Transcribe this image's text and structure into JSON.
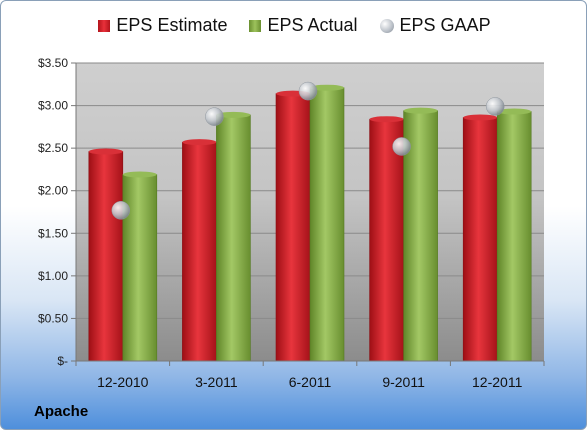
{
  "legend": {
    "estimate": "EPS Estimate",
    "actual": "EPS Actual",
    "gaap": "EPS GAAP"
  },
  "company": "Apache",
  "colors": {
    "estimate": "#d42a2f",
    "actual": "#8ab04c",
    "gaap": "#b9bfc6"
  },
  "chart_data": {
    "type": "bar",
    "categories": [
      "12-2010",
      "3-2011",
      "6-2011",
      "9-2011",
      "12-2011"
    ],
    "series": [
      {
        "name": "EPS Estimate",
        "values": [
          2.46,
          2.57,
          3.14,
          2.84,
          2.86
        ]
      },
      {
        "name": "EPS Actual",
        "values": [
          2.19,
          2.89,
          3.21,
          2.94,
          2.93
        ]
      },
      {
        "name": "EPS GAAP",
        "type": "scatter",
        "values": [
          1.77,
          2.87,
          3.17,
          2.52,
          2.99
        ]
      }
    ],
    "ylim": [
      0,
      3.5
    ],
    "yticks": [
      0,
      0.5,
      1.0,
      1.5,
      2.0,
      2.5,
      3.0,
      3.5
    ],
    "ytick_labels": [
      "$-",
      "$0.50",
      "$1.00",
      "$1.50",
      "$2.00",
      "$2.50",
      "$3.00",
      "$3.50"
    ],
    "grid": true,
    "legend_position": "top"
  }
}
